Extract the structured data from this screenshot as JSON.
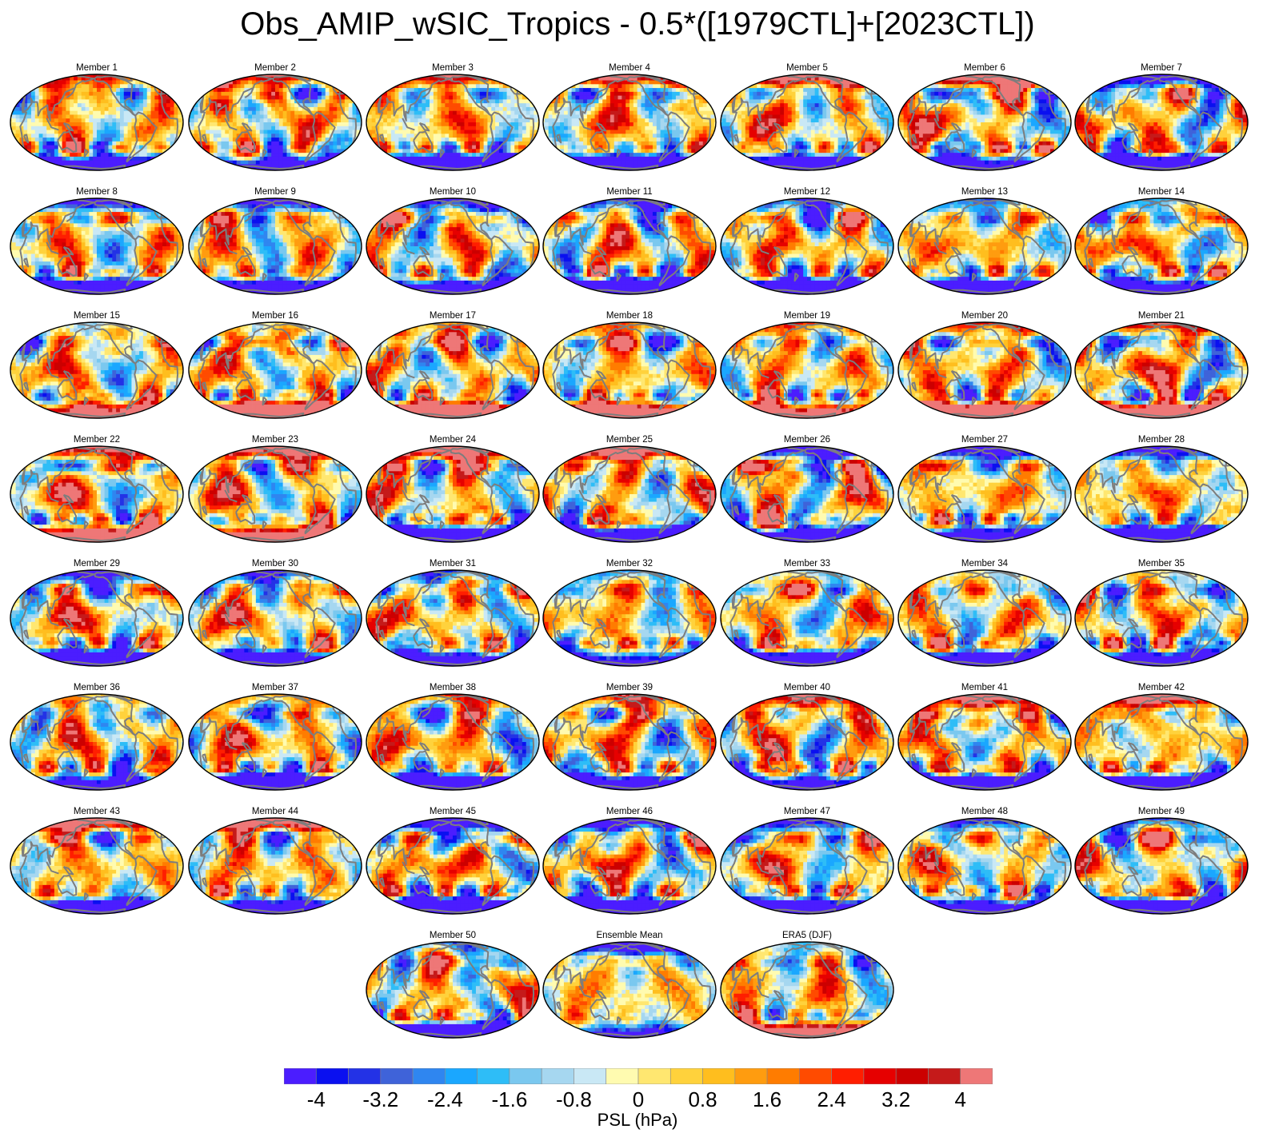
{
  "figure": {
    "title": "Obs_AMIP_wSIC_Tropics - 0.5*([1979CTL]+[2023CTL])",
    "panel_titles": [
      "Member 1",
      "Member 2",
      "Member 3",
      "Member 4",
      "Member 5",
      "Member 6",
      "Member 7",
      "Member 8",
      "Member 9",
      "Member 10",
      "Member 11",
      "Member 12",
      "Member 13",
      "Member 14",
      "Member 15",
      "Member 16",
      "Member 17",
      "Member 18",
      "Member 19",
      "Member 20",
      "Member 21",
      "Member 22",
      "Member 23",
      "Member 24",
      "Member 25",
      "Member 26",
      "Member 27",
      "Member 28",
      "Member 29",
      "Member 30",
      "Member 31",
      "Member 32",
      "Member 33",
      "Member 34",
      "Member 35",
      "Member 36",
      "Member 37",
      "Member 38",
      "Member 39",
      "Member 40",
      "Member 41",
      "Member 42",
      "Member 43",
      "Member 44",
      "Member 45",
      "Member 46",
      "Member 47",
      "Member 48",
      "Member 49",
      "Member 50",
      "Ensemble Mean",
      "ERA5 (DJF)"
    ],
    "projection": "robinson",
    "field_variable": "PSL",
    "grid": "7 columns x 7 rows, last row of 3 centered"
  },
  "colorbar": {
    "label": "PSL (hPa)",
    "tick_labels": [
      "-4",
      "-3.2",
      "-2.4",
      "-1.6",
      "-0.8",
      "0",
      "0.8",
      "1.6",
      "2.4",
      "3.2",
      "4"
    ],
    "min": -4.4,
    "max": 4.4,
    "step": 0.4,
    "colors": [
      "#4b1dff",
      "#0a10f0",
      "#2332e6",
      "#3f63d9",
      "#2f86f0",
      "#1aa7ff",
      "#2ebdf7",
      "#7ac8ef",
      "#a6d7f0",
      "#c9e8f5",
      "#fffbb0",
      "#ffe770",
      "#ffd23c",
      "#ffbe1e",
      "#ff9c0f",
      "#ff7c00",
      "#ff4b00",
      "#ff1e00",
      "#e60000",
      "#cc0000",
      "#c51a1a",
      "#ee7777"
    ],
    "land_outline_color": "#7d7d7d"
  }
}
